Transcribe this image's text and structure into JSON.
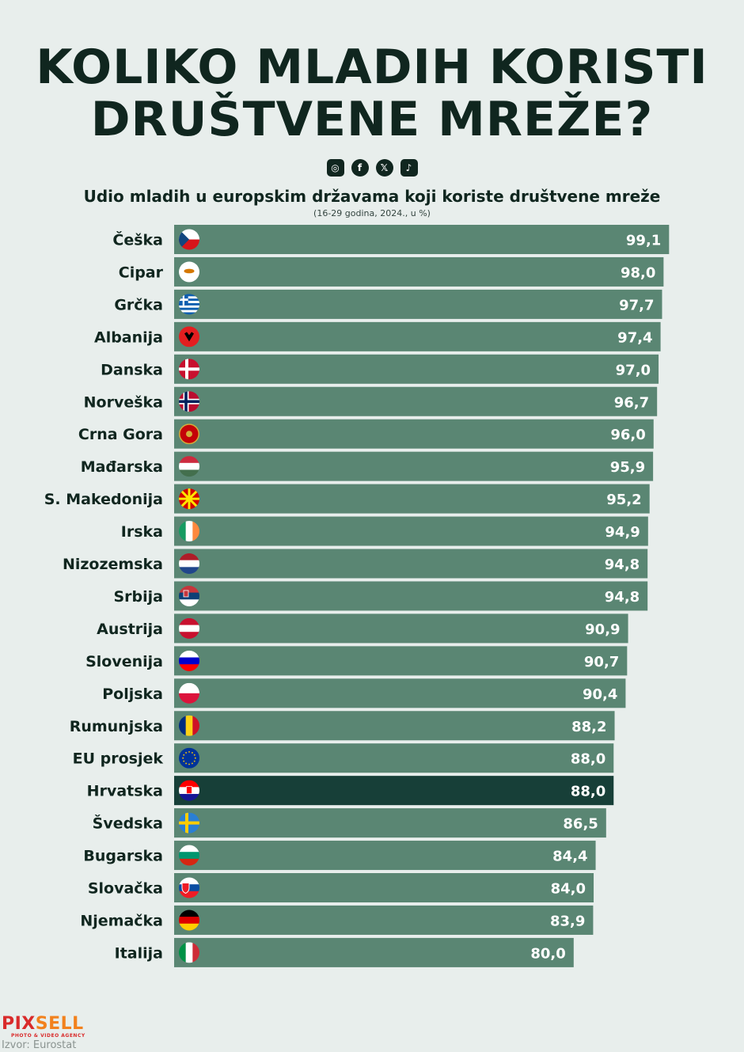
{
  "header": {
    "title_line1": "KOLIKO MLADIH KORISTI",
    "title_line2": "DRUŠTVENE MREŽE?",
    "social_icons": [
      "instagram-icon",
      "facebook-icon",
      "x-icon",
      "tiktok-icon"
    ]
  },
  "footer": {
    "logo_part1": "PIX",
    "logo_part2": "SELL",
    "logo_tagline": "PHOTO & VIDEO AGENCY",
    "source": "Izvor: Eurostat"
  },
  "colors": {
    "bar": "#5a8673",
    "highlight_bar": "#173f38",
    "background": "#e8eeec",
    "text": "#10261f"
  },
  "chart_data": {
    "type": "bar",
    "orientation": "horizontal",
    "title": "Udio mladih u europskim državama koji koriste društvene mreže",
    "subtitle": "(16-29 godina, 2024., u %)",
    "xlabel": "",
    "ylabel": "",
    "xlim": [
      0,
      100
    ],
    "grid": false,
    "highlight": "Hrvatska",
    "categories": [
      "Češka",
      "Cipar",
      "Grčka",
      "Albanija",
      "Danska",
      "Norveška",
      "Crna Gora",
      "Mađarska",
      "S. Makedonija",
      "Irska",
      "Nizozemska",
      "Srbija",
      "Austrija",
      "Slovenija",
      "Poljska",
      "Rumunjska",
      "EU prosjek",
      "Hrvatska",
      "Švedska",
      "Bugarska",
      "Slovačka",
      "Njemačka",
      "Italija"
    ],
    "values": [
      99.1,
      98.0,
      97.7,
      97.4,
      97.0,
      96.7,
      96.0,
      95.9,
      95.2,
      94.9,
      94.8,
      94.8,
      90.9,
      90.7,
      90.4,
      88.2,
      88.0,
      88.0,
      86.5,
      84.4,
      84.0,
      83.9,
      80.0
    ],
    "value_labels": [
      "99,1",
      "98,0",
      "97,7",
      "97,4",
      "97,0",
      "96,7",
      "96,0",
      "95,9",
      "95,2",
      "94,9",
      "94,8",
      "94,8",
      "90,9",
      "90,7",
      "90,4",
      "88,2",
      "88,0",
      "88,0",
      "86,5",
      "84,4",
      "84,0",
      "83,9",
      "80,0"
    ],
    "flags": [
      "cz-flag-icon",
      "cy-flag-icon",
      "gr-flag-icon",
      "al-flag-icon",
      "dk-flag-icon",
      "no-flag-icon",
      "me-flag-icon",
      "hu-flag-icon",
      "mk-flag-icon",
      "ie-flag-icon",
      "nl-flag-icon",
      "rs-flag-icon",
      "at-flag-icon",
      "si-flag-icon",
      "pl-flag-icon",
      "ro-flag-icon",
      "eu-flag-icon",
      "hr-flag-icon",
      "se-flag-icon",
      "bg-flag-icon",
      "sk-flag-icon",
      "de-flag-icon",
      "it-flag-icon"
    ]
  }
}
